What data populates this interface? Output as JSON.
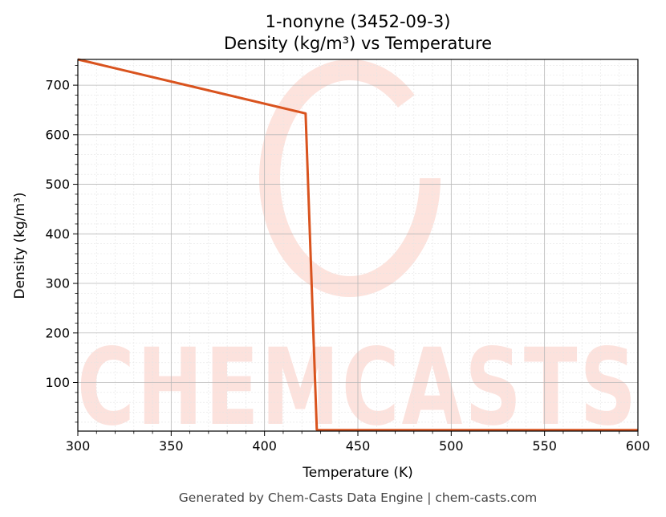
{
  "chart_data": {
    "type": "line",
    "title": "1-nonyne (3452-09-3)",
    "subtitle": "Density (kg/m³) vs Temperature",
    "xlabel": "Temperature (K)",
    "ylabel": "Density (kg/m³)",
    "xlim": [
      300,
      600
    ],
    "ylim": [
      2,
      752
    ],
    "x_ticks": [
      300,
      350,
      400,
      450,
      500,
      550,
      600
    ],
    "y_ticks": [
      100,
      200,
      300,
      400,
      500,
      600,
      700
    ],
    "grid": true,
    "series": [
      {
        "color": "#d9531e",
        "x": [
          300,
          422,
          428,
          428.5,
          600
        ],
        "y": [
          752,
          643,
          5,
          4,
          4
        ]
      }
    ]
  },
  "footer": "Generated by Chem-Casts Data Engine | chem-casts.com",
  "watermark": "CHEMCASTS"
}
